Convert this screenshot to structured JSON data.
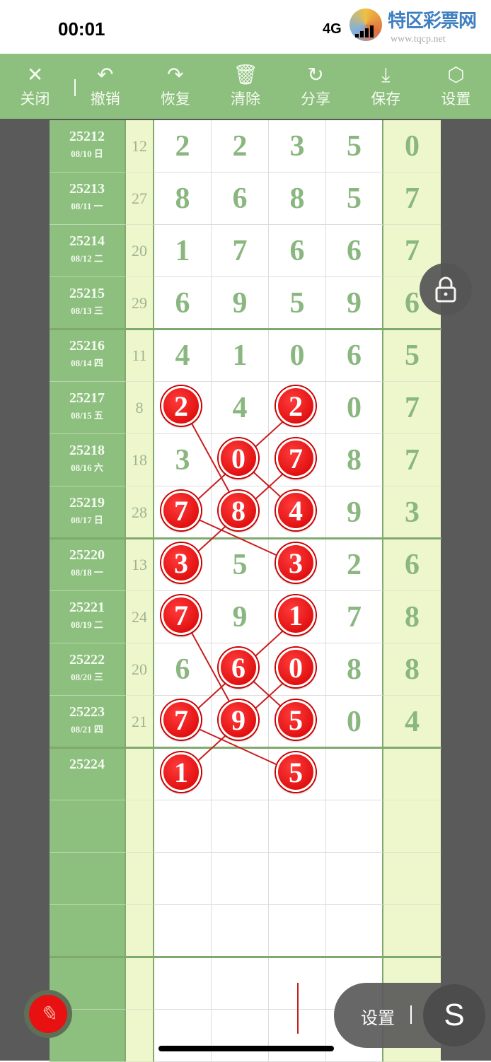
{
  "status": {
    "time": "00:01",
    "network": "4G"
  },
  "watermark": {
    "name": "特区彩票网",
    "url": "www.tqcp.net"
  },
  "toolbar": [
    {
      "icon": "close-icon",
      "glyph": "✕",
      "label": "关闭"
    },
    {
      "icon": "undo-icon",
      "glyph": "↶",
      "label": "撤销"
    },
    {
      "icon": "redo-icon",
      "glyph": "↷",
      "label": "恢复"
    },
    {
      "icon": "trash-icon",
      "glyph": "🗑",
      "label": "清除"
    },
    {
      "icon": "share-icon",
      "glyph": "↻",
      "label": "分享"
    },
    {
      "icon": "download-icon",
      "glyph": "⤓",
      "label": "保存"
    },
    {
      "icon": "settings-icon",
      "glyph": "⬡",
      "label": "设置"
    }
  ],
  "rows": [
    {
      "id": "25212",
      "date": "08/10 日",
      "sum": "12",
      "digits": [
        "2",
        "2",
        "3",
        "5"
      ],
      "extra": "0",
      "marked": []
    },
    {
      "id": "25213",
      "date": "08/11 一",
      "sum": "27",
      "digits": [
        "8",
        "6",
        "8",
        "5"
      ],
      "extra": "7",
      "marked": []
    },
    {
      "id": "25214",
      "date": "08/12 二",
      "sum": "20",
      "digits": [
        "1",
        "7",
        "6",
        "6"
      ],
      "extra": "7",
      "marked": []
    },
    {
      "id": "25215",
      "date": "08/13 三",
      "sum": "29",
      "digits": [
        "6",
        "9",
        "5",
        "9"
      ],
      "extra": "6",
      "marked": []
    },
    {
      "id": "25216",
      "date": "08/14 四",
      "sum": "11",
      "digits": [
        "4",
        "1",
        "0",
        "6"
      ],
      "extra": "5",
      "marked": []
    },
    {
      "id": "25217",
      "date": "08/15 五",
      "sum": "8",
      "digits": [
        "2",
        "4",
        "2",
        "0"
      ],
      "extra": "7",
      "marked": [
        0,
        2
      ]
    },
    {
      "id": "25218",
      "date": "08/16 六",
      "sum": "18",
      "digits": [
        "3",
        "0",
        "7",
        "8"
      ],
      "extra": "7",
      "marked": [
        1,
        2
      ]
    },
    {
      "id": "25219",
      "date": "08/17 日",
      "sum": "28",
      "digits": [
        "7",
        "8",
        "4",
        "9"
      ],
      "extra": "3",
      "marked": [
        0,
        1,
        2
      ]
    },
    {
      "id": "25220",
      "date": "08/18 一",
      "sum": "13",
      "digits": [
        "3",
        "5",
        "3",
        "2"
      ],
      "extra": "6",
      "marked": [
        0,
        2
      ]
    },
    {
      "id": "25221",
      "date": "08/19 二",
      "sum": "24",
      "digits": [
        "7",
        "9",
        "1",
        "7"
      ],
      "extra": "8",
      "marked": [
        0,
        2
      ]
    },
    {
      "id": "25222",
      "date": "08/20 三",
      "sum": "20",
      "digits": [
        "6",
        "6",
        "0",
        "8"
      ],
      "extra": "8",
      "marked": [
        1,
        2
      ]
    },
    {
      "id": "25223",
      "date": "08/21 四",
      "sum": "21",
      "digits": [
        "7",
        "9",
        "5",
        "0"
      ],
      "extra": "4",
      "marked": [
        0,
        1,
        2
      ]
    },
    {
      "id": "25224",
      "date": "",
      "sum": "",
      "digits": [
        "1",
        "",
        "5",
        ""
      ],
      "extra": "",
      "marked": [
        0,
        2
      ]
    }
  ],
  "empty_rows": 5,
  "connections": [
    [
      [
        5,
        0
      ],
      [
        7,
        1
      ]
    ],
    [
      [
        5,
        2
      ],
      [
        7,
        0
      ]
    ],
    [
      [
        6,
        1
      ],
      [
        7,
        2
      ]
    ],
    [
      [
        6,
        2
      ],
      [
        7,
        1
      ]
    ],
    [
      [
        7,
        0
      ],
      [
        8,
        2
      ]
    ],
    [
      [
        7,
        1
      ],
      [
        8,
        0
      ]
    ],
    [
      [
        9,
        0
      ],
      [
        11,
        1
      ]
    ],
    [
      [
        9,
        2
      ],
      [
        11,
        0
      ]
    ],
    [
      [
        10,
        1
      ],
      [
        11,
        2
      ]
    ],
    [
      [
        10,
        2
      ],
      [
        11,
        1
      ]
    ],
    [
      [
        11,
        0
      ],
      [
        12,
        2
      ]
    ],
    [
      [
        11,
        1
      ],
      [
        12,
        0
      ]
    ]
  ],
  "float": {
    "settings_label": "设置",
    "switch_glyph": "S",
    "pen_glyph": "✎"
  },
  "colors": {
    "accent": "#8dbf7f",
    "ball": "#e81010",
    "digit": "#8ab77f"
  }
}
